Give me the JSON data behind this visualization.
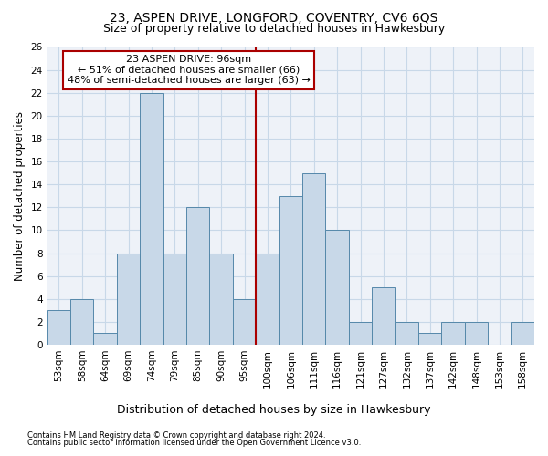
{
  "title1": "23, ASPEN DRIVE, LONGFORD, COVENTRY, CV6 6QS",
  "title2": "Size of property relative to detached houses in Hawkesbury",
  "xlabel": "Distribution of detached houses by size in Hawkesbury",
  "ylabel": "Number of detached properties",
  "footnote1": "Contains HM Land Registry data © Crown copyright and database right 2024.",
  "footnote2": "Contains public sector information licensed under the Open Government Licence v3.0.",
  "categories": [
    "53sqm",
    "58sqm",
    "64sqm",
    "69sqm",
    "74sqm",
    "79sqm",
    "85sqm",
    "90sqm",
    "95sqm",
    "100sqm",
    "106sqm",
    "111sqm",
    "116sqm",
    "121sqm",
    "127sqm",
    "132sqm",
    "137sqm",
    "142sqm",
    "148sqm",
    "153sqm",
    "158sqm"
  ],
  "values": [
    3,
    4,
    1,
    8,
    22,
    8,
    12,
    8,
    4,
    8,
    13,
    15,
    10,
    2,
    5,
    2,
    1,
    2,
    2,
    0,
    2
  ],
  "bar_color": "#c8d8e8",
  "bar_edge_color": "#5588aa",
  "vline_x_index": 8,
  "vline_color": "#aa0000",
  "annotation_line1": "23 ASPEN DRIVE: 96sqm",
  "annotation_line2": "← 51% of detached houses are smaller (66)",
  "annotation_line3": "48% of semi-detached houses are larger (63) →",
  "annotation_box_color": "#ffffff",
  "annotation_box_edge_color": "#aa0000",
  "ylim": [
    0,
    26
  ],
  "yticks": [
    0,
    2,
    4,
    6,
    8,
    10,
    12,
    14,
    16,
    18,
    20,
    22,
    24,
    26
  ],
  "grid_color": "#c8d8e8",
  "bg_color": "#eef2f8",
  "title1_fontsize": 10,
  "title2_fontsize": 9,
  "xlabel_fontsize": 9,
  "ylabel_fontsize": 8.5,
  "annotation_fontsize": 8,
  "tick_fontsize": 7.5,
  "footnote_fontsize": 6
}
